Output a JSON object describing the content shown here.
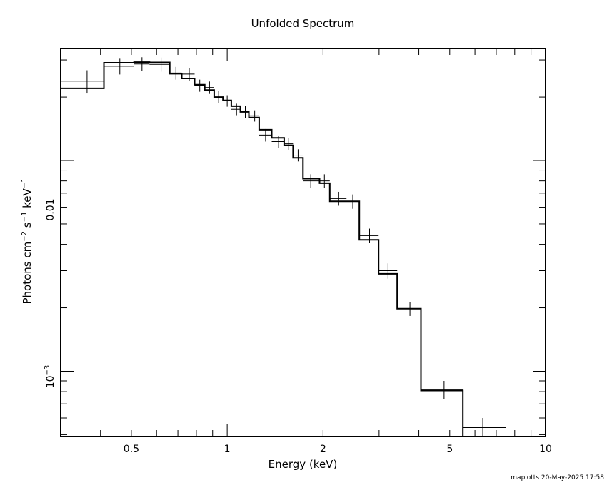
{
  "chart_data": {
    "type": "line",
    "title": "Unfolded Spectrum",
    "xlabel": "Energy (keV)",
    "ylabel": "Photons cm^-2 s^-1 keV^-1",
    "xscale": "log",
    "yscale": "log",
    "xlim": [
      0.3,
      10
    ],
    "ylim": [
      0.00049,
      0.034
    ],
    "x_ticks": [
      "0.5",
      "1",
      "2",
      "5",
      "10"
    ],
    "y_ticks": [
      "0.01",
      "10^-3"
    ],
    "grid": false,
    "legend": "none",
    "data_points": [
      {
        "x": 0.363,
        "xlo": 0.3,
        "xhi": 0.41,
        "y": 0.0238,
        "yerr": 0.003
      },
      {
        "x": 0.46,
        "xlo": 0.41,
        "xhi": 0.51,
        "y": 0.028,
        "yerr": 0.0024
      },
      {
        "x": 0.54,
        "xlo": 0.51,
        "xhi": 0.57,
        "y": 0.0287,
        "yerr": 0.0022
      },
      {
        "x": 0.62,
        "xlo": 0.57,
        "xhi": 0.66,
        "y": 0.0286,
        "yerr": 0.0022
      },
      {
        "x": 0.69,
        "xlo": 0.66,
        "xhi": 0.72,
        "y": 0.026,
        "yerr": 0.0018
      },
      {
        "x": 0.76,
        "xlo": 0.72,
        "xhi": 0.79,
        "y": 0.0257,
        "yerr": 0.0018
      },
      {
        "x": 0.82,
        "xlo": 0.79,
        "xhi": 0.85,
        "y": 0.0227,
        "yerr": 0.0015
      },
      {
        "x": 0.88,
        "xlo": 0.85,
        "xhi": 0.91,
        "y": 0.0222,
        "yerr": 0.0015
      },
      {
        "x": 0.94,
        "xlo": 0.91,
        "xhi": 0.97,
        "y": 0.02,
        "yerr": 0.0013
      },
      {
        "x": 1.0,
        "xlo": 0.97,
        "xhi": 1.03,
        "y": 0.0192,
        "yerr": 0.0012
      },
      {
        "x": 1.07,
        "xlo": 1.03,
        "xhi": 1.1,
        "y": 0.0175,
        "yerr": 0.0011
      },
      {
        "x": 1.14,
        "xlo": 1.1,
        "xhi": 1.17,
        "y": 0.017,
        "yerr": 0.0011
      },
      {
        "x": 1.22,
        "xlo": 1.17,
        "xhi": 1.26,
        "y": 0.0163,
        "yerr": 0.001
      },
      {
        "x": 1.32,
        "xlo": 1.26,
        "xhi": 1.38,
        "y": 0.0132,
        "yerr": 0.0009
      },
      {
        "x": 1.45,
        "xlo": 1.38,
        "xhi": 1.51,
        "y": 0.0123,
        "yerr": 0.0008
      },
      {
        "x": 1.56,
        "xlo": 1.51,
        "xhi": 1.61,
        "y": 0.012,
        "yerr": 0.0008
      },
      {
        "x": 1.67,
        "xlo": 1.61,
        "xhi": 1.73,
        "y": 0.0106,
        "yerr": 0.0007
      },
      {
        "x": 1.83,
        "xlo": 1.73,
        "xhi": 1.95,
        "y": 0.008,
        "yerr": 0.0006
      },
      {
        "x": 2.02,
        "xlo": 1.95,
        "xhi": 2.1,
        "y": 0.008,
        "yerr": 0.0006
      },
      {
        "x": 2.24,
        "xlo": 2.1,
        "xhi": 2.37,
        "y": 0.0066,
        "yerr": 0.0005
      },
      {
        "x": 2.48,
        "xlo": 2.37,
        "xhi": 2.6,
        "y": 0.0064,
        "yerr": 0.0005
      },
      {
        "x": 2.8,
        "xlo": 2.6,
        "xhi": 2.99,
        "y": 0.0044,
        "yerr": 0.00035
      },
      {
        "x": 3.2,
        "xlo": 2.99,
        "xhi": 3.42,
        "y": 0.003,
        "yerr": 0.00025
      },
      {
        "x": 3.75,
        "xlo": 3.42,
        "xhi": 4.06,
        "y": 0.00198,
        "yerr": 0.00015
      },
      {
        "x": 4.8,
        "xlo": 4.06,
        "xhi": 5.5,
        "y": 0.00082,
        "yerr": 8e-05
      },
      {
        "x": 6.35,
        "xlo": 5.5,
        "xhi": 7.5,
        "y": 0.00054,
        "yerr": 6e-05
      }
    ],
    "model_steps": [
      {
        "xlo": 0.3,
        "xhi": 0.41,
        "y": 0.022
      },
      {
        "xlo": 0.41,
        "xhi": 0.51,
        "y": 0.0291
      },
      {
        "xlo": 0.51,
        "xhi": 0.57,
        "y": 0.0293
      },
      {
        "xlo": 0.57,
        "xhi": 0.66,
        "y": 0.0292
      },
      {
        "xlo": 0.66,
        "xhi": 0.72,
        "y": 0.0258
      },
      {
        "xlo": 0.72,
        "xhi": 0.79,
        "y": 0.0245
      },
      {
        "xlo": 0.79,
        "xhi": 0.85,
        "y": 0.0229
      },
      {
        "xlo": 0.85,
        "xhi": 0.91,
        "y": 0.0216
      },
      {
        "xlo": 0.91,
        "xhi": 0.97,
        "y": 0.02
      },
      {
        "xlo": 0.97,
        "xhi": 1.03,
        "y": 0.0193
      },
      {
        "xlo": 1.03,
        "xhi": 1.1,
        "y": 0.0181
      },
      {
        "xlo": 1.1,
        "xhi": 1.17,
        "y": 0.017
      },
      {
        "xlo": 1.17,
        "xhi": 1.26,
        "y": 0.016
      },
      {
        "xlo": 1.26,
        "xhi": 1.38,
        "y": 0.014
      },
      {
        "xlo": 1.38,
        "xhi": 1.51,
        "y": 0.0128
      },
      {
        "xlo": 1.51,
        "xhi": 1.61,
        "y": 0.0118
      },
      {
        "xlo": 1.61,
        "xhi": 1.73,
        "y": 0.0103
      },
      {
        "xlo": 1.73,
        "xhi": 1.95,
        "y": 0.0082
      },
      {
        "xlo": 1.95,
        "xhi": 2.1,
        "y": 0.0078
      },
      {
        "xlo": 2.1,
        "xhi": 2.37,
        "y": 0.0064
      },
      {
        "xlo": 2.37,
        "xhi": 2.6,
        "y": 0.0064
      },
      {
        "xlo": 2.6,
        "xhi": 2.99,
        "y": 0.0042
      },
      {
        "xlo": 2.99,
        "xhi": 3.42,
        "y": 0.0029
      },
      {
        "xlo": 3.42,
        "xhi": 4.06,
        "y": 0.00198
      },
      {
        "xlo": 4.06,
        "xhi": 5.5,
        "y": 0.00081
      },
      {
        "xlo": 5.5,
        "xhi": 7.5,
        "y": 0.00049
      }
    ]
  },
  "footer": {
    "stamp": "maplotts 20-May-2025 17:58"
  },
  "colors": {
    "line": "#000000",
    "background": "#ffffff"
  }
}
